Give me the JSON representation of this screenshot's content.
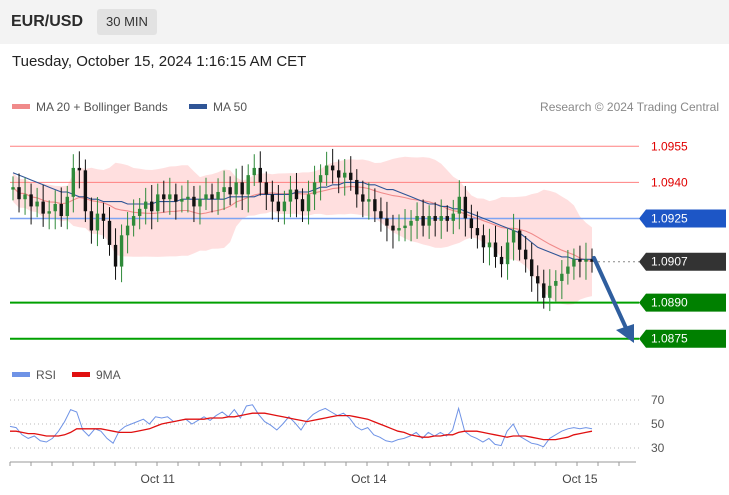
{
  "header": {
    "symbol": "EUR/USD",
    "timeframe": "30 MIN",
    "datetime": "Tuesday, October 15, 2024 1:16:15 AM CET"
  },
  "legend": {
    "ma20_label": "MA 20 + Bollinger Bands",
    "ma50_label": "MA 50",
    "credit": "Research © 2024 Trading Central",
    "ma20_color": "#f08a8a",
    "ma50_color": "#2f5596"
  },
  "rsi_legend": {
    "rsi_label": "RSI",
    "ma_label": "9MA",
    "rsi_color": "#6f93e6",
    "ma_color": "#e01010"
  },
  "chart_data": [
    {
      "type": "candlestick",
      "ylim": [
        1.0862,
        1.0968
      ],
      "x_ticks": [
        {
          "label": "Oct 11",
          "index": 24
        },
        {
          "label": "Oct 14",
          "index": 59
        },
        {
          "label": "Oct 15",
          "index": 94
        }
      ],
      "levels": [
        {
          "label": "1.0955",
          "value": 1.0955,
          "kind": "resistance",
          "color": "#ff8080",
          "label_color": "#e00000"
        },
        {
          "label": "1.0940",
          "value": 1.094,
          "kind": "resistance",
          "color": "#ff8080",
          "label_color": "#e00000"
        },
        {
          "label": "1.0925",
          "value": 1.0925,
          "kind": "pivot",
          "color": "#7da4f3",
          "label_bg": "#1d56c6"
        },
        {
          "label": "1.0907",
          "value": 1.0907,
          "kind": "current",
          "color": "#888888",
          "label_bg": "#333333"
        },
        {
          "label": "1.0890",
          "value": 1.089,
          "kind": "support",
          "color": "#00a000",
          "label_bg": "#008000"
        },
        {
          "label": "1.0875",
          "value": 1.0875,
          "kind": "support",
          "color": "#00a000",
          "label_bg": "#008000"
        }
      ],
      "close": [
        1.0938,
        1.0933,
        1.0935,
        1.093,
        1.0932,
        1.0927,
        1.0928,
        1.0931,
        1.0926,
        1.0934,
        1.0946,
        1.0945,
        1.0928,
        1.092,
        1.0927,
        1.0924,
        1.0914,
        1.0905,
        1.0918,
        1.0922,
        1.0926,
        1.0929,
        1.0932,
        1.0928,
        1.0935,
        1.0933,
        1.0935,
        1.0932,
        1.0933,
        1.0934,
        1.093,
        1.0933,
        1.0935,
        1.0933,
        1.0936,
        1.0938,
        1.0935,
        1.094,
        1.0935,
        1.0943,
        1.0946,
        1.094,
        1.0935,
        1.0932,
        1.0928,
        1.0932,
        1.0937,
        1.0933,
        1.0928,
        1.0935,
        1.094,
        1.0943,
        1.0947,
        1.0945,
        1.0942,
        1.0944,
        1.0941,
        1.0935,
        1.0932,
        1.0933,
        1.0928,
        1.0925,
        1.0922,
        1.092,
        1.0921,
        1.0922,
        1.0924,
        1.0926,
        1.0922,
        1.0926,
        1.0924,
        1.0926,
        1.0924,
        1.0927,
        1.0934,
        1.0925,
        1.0921,
        1.0918,
        1.0913,
        1.0915,
        1.0909,
        1.0906,
        1.0915,
        1.092,
        1.0912,
        1.0908,
        1.0901,
        1.0898,
        1.0892,
        1.0897,
        1.0899,
        1.0902,
        1.0905,
        1.0908,
        1.0907,
        1.0908,
        1.0907
      ],
      "open": [
        1.0937,
        1.0938,
        1.0933,
        1.0935,
        1.093,
        1.0932,
        1.0927,
        1.0928,
        1.0931,
        1.0926,
        1.0934,
        1.0946,
        1.0945,
        1.0928,
        1.092,
        1.0927,
        1.0924,
        1.0914,
        1.0905,
        1.0918,
        1.0922,
        1.0926,
        1.0929,
        1.0932,
        1.0928,
        1.0935,
        1.0933,
        1.0935,
        1.0932,
        1.0933,
        1.0934,
        1.093,
        1.0933,
        1.0935,
        1.0933,
        1.0936,
        1.0938,
        1.0935,
        1.094,
        1.0935,
        1.0943,
        1.0946,
        1.094,
        1.0935,
        1.0932,
        1.0928,
        1.0932,
        1.0937,
        1.0933,
        1.0928,
        1.0935,
        1.094,
        1.0943,
        1.0947,
        1.0945,
        1.0942,
        1.0944,
        1.0941,
        1.0935,
        1.0932,
        1.0933,
        1.0928,
        1.0925,
        1.0922,
        1.092,
        1.0921,
        1.0922,
        1.0924,
        1.0926,
        1.0922,
        1.0926,
        1.0924,
        1.0926,
        1.0924,
        1.0927,
        1.0934,
        1.0925,
        1.0921,
        1.0918,
        1.0913,
        1.0915,
        1.0909,
        1.0906,
        1.0915,
        1.092,
        1.0912,
        1.0908,
        1.0901,
        1.0898,
        1.0892,
        1.0897,
        1.0899,
        1.0902,
        1.0905,
        1.0908,
        1.0907,
        1.0908
      ],
      "ma50": [
        1.0944,
        1.0943,
        1.0942,
        1.0941,
        1.094,
        1.0939,
        1.0938,
        1.0937,
        1.0936,
        1.0936,
        1.0935,
        1.0934,
        1.0934,
        1.0933,
        1.0933,
        1.0932,
        1.0932,
        1.0932,
        1.0932,
        1.0931,
        1.0931,
        1.0931,
        1.0931,
        1.0931,
        1.0932,
        1.0932,
        1.0932,
        1.0932,
        1.0933,
        1.0933,
        1.0933,
        1.0933,
        1.0933,
        1.0933,
        1.0933,
        1.0933,
        1.0934,
        1.0934,
        1.0934,
        1.0934,
        1.0934,
        1.0935,
        1.0935,
        1.0935,
        1.0935,
        1.0935,
        1.0935,
        1.0936,
        1.0936,
        1.0936,
        1.0937,
        1.0938,
        1.0938,
        1.0939,
        1.0939,
        1.094,
        1.094,
        1.094,
        1.094,
        1.0939,
        1.0939,
        1.0938,
        1.0937,
        1.0937,
        1.0936,
        1.0935,
        1.0934,
        1.0933,
        1.0932,
        1.0931,
        1.0931,
        1.093,
        1.093,
        1.0929,
        1.0929,
        1.0928,
        1.0927,
        1.0926,
        1.0925,
        1.0924,
        1.0923,
        1.0922,
        1.0921,
        1.092,
        1.0919,
        1.0917,
        1.0915,
        1.0913,
        1.0912,
        1.0911,
        1.091,
        1.0909,
        1.0909,
        1.0908,
        1.0908,
        1.0908,
        1.0908
      ]
    },
    {
      "type": "line",
      "title": "RSI",
      "ylim": [
        20,
        80
      ],
      "y_ticks": [
        70,
        50,
        30
      ],
      "series": [
        {
          "name": "RSI",
          "values": [
            48,
            47,
            41,
            38,
            40,
            36,
            35,
            38,
            44,
            52,
            62,
            60,
            45,
            40,
            46,
            44,
            38,
            34,
            44,
            48,
            50,
            52,
            54,
            50,
            56,
            55,
            56,
            52,
            53,
            54,
            50,
            53,
            56,
            53,
            57,
            60,
            56,
            62,
            55,
            65,
            66,
            58,
            52,
            49,
            45,
            50,
            56,
            51,
            45,
            53,
            58,
            61,
            63,
            60,
            57,
            59,
            55,
            48,
            45,
            47,
            41,
            39,
            36,
            35,
            37,
            38,
            40,
            43,
            38,
            43,
            40,
            43,
            40,
            45,
            63,
            44,
            40,
            38,
            35,
            38,
            33,
            32,
            44,
            50,
            40,
            37,
            34,
            33,
            31,
            38,
            41,
            44,
            46,
            47,
            46,
            47,
            46
          ]
        },
        {
          "name": "9MA",
          "values": [
            44,
            44,
            43,
            42,
            42,
            41,
            40,
            40,
            40,
            41,
            43,
            46,
            46,
            46,
            46,
            46,
            45,
            44,
            43,
            43,
            43,
            44,
            45,
            46,
            48,
            50,
            51,
            52,
            53,
            54,
            54,
            54,
            54,
            55,
            55,
            55,
            56,
            56,
            57,
            58,
            59,
            59,
            59,
            58,
            57,
            56,
            55,
            54,
            53,
            52,
            53,
            54,
            55,
            56,
            57,
            57,
            57,
            56,
            55,
            54,
            52,
            50,
            48,
            46,
            44,
            43,
            41,
            40,
            39,
            39,
            40,
            40,
            41,
            41,
            43,
            44,
            44,
            44,
            43,
            42,
            41,
            40,
            39,
            40,
            40,
            40,
            39,
            38,
            37,
            37,
            37,
            38,
            39,
            41,
            42,
            43,
            44
          ]
        }
      ]
    }
  ]
}
